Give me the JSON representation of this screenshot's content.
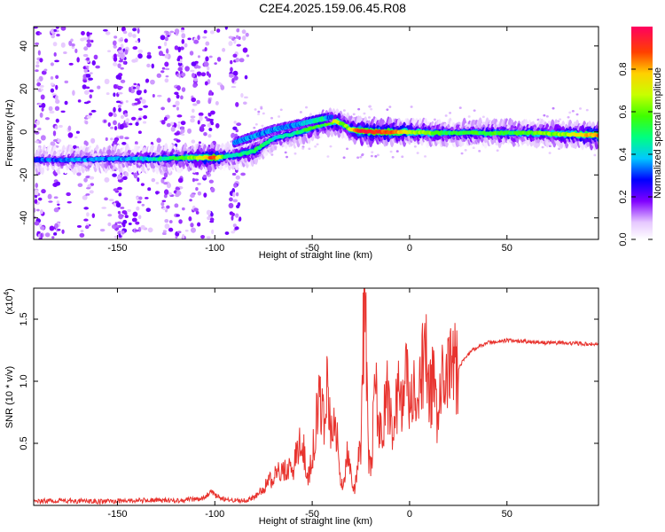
{
  "title": "C2E4.2025.159.06.45.R08",
  "chart_data": [
    {
      "type": "heatmap",
      "xlabel": "Height of straight line (km)",
      "ylabel": "Frequency (Hz)",
      "xlim": [
        -193,
        97
      ],
      "ylim": [
        -50,
        49
      ],
      "xticks": [
        -150,
        -100,
        -50,
        0,
        50
      ],
      "xtick_labels": [
        "-150",
        "-100",
        "-50",
        "0",
        "50"
      ],
      "yticks": [
        -40,
        -20,
        0,
        20,
        40
      ],
      "ytick_labels": [
        "-40",
        "-20",
        "0",
        "20",
        "40"
      ],
      "colorbar": {
        "label": "Normalized spectral amplitude",
        "range": [
          0,
          1
        ],
        "ticks": [
          0.0,
          0.2,
          0.4,
          0.6,
          0.8
        ],
        "tick_labels": [
          "0.0",
          "0.2",
          "0.4",
          "0.6",
          "0.8"
        ]
      },
      "ridge": {
        "x": [
          -193,
          -170,
          -150,
          -130,
          -115,
          -100,
          -95,
          -90,
          -80,
          -70,
          -60,
          -50,
          -42,
          -38,
          -34,
          -30,
          -25,
          -20,
          -10,
          0,
          10,
          20,
          40,
          60,
          80,
          97
        ],
        "y": [
          -13,
          -13,
          -12.5,
          -12.5,
          -12,
          -12,
          -11.5,
          -11,
          -9,
          -3,
          -1,
          2,
          4,
          5,
          3.5,
          1,
          0.5,
          0,
          0,
          0,
          -0.5,
          -0.5,
          -0.5,
          -0.5,
          -1,
          -1.5
        ],
        "amp": [
          0.3,
          0.35,
          0.35,
          0.45,
          0.55,
          0.9,
          0.5,
          0.45,
          0.55,
          0.4,
          0.45,
          0.55,
          0.55,
          0.75,
          0.6,
          0.65,
          0.95,
          0.9,
          0.9,
          0.7,
          0.6,
          0.5,
          0.55,
          0.55,
          0.65,
          0.85
        ]
      },
      "secondary_ridge": {
        "x": [
          -90,
          -80,
          -70,
          -60,
          -50,
          -45,
          -40
        ],
        "y": [
          -5,
          -2,
          1,
          3,
          5,
          6,
          7
        ],
        "amp": [
          0.35,
          0.35,
          0.35,
          0.35,
          0.4,
          0.5,
          0.3
        ]
      }
    },
    {
      "type": "line",
      "xlabel": "Height of straight line (km)",
      "ylabel": "SNR (10 * v/v)",
      "y_multiplier": "(x10",
      "y_multiplier_exp": "4",
      "y_multiplier_close": ")",
      "xlim": [
        -193,
        97
      ],
      "ylim": [
        0,
        1.75
      ],
      "xticks": [
        -150,
        -100,
        -50,
        0,
        50
      ],
      "xtick_labels": [
        "-150",
        "-100",
        "-50",
        "0",
        "50"
      ],
      "yticks": [
        0.5,
        1.0,
        1.5
      ],
      "ytick_labels": [
        "0.5",
        "1.0",
        "1.5"
      ],
      "series": [
        {
          "color": "#e8332e",
          "x": [
            -193,
            -180,
            -160,
            -140,
            -120,
            -110,
            -105,
            -102,
            -100,
            -95,
            -90,
            -85,
            -80,
            -76,
            -72,
            -68,
            -64,
            -60,
            -57,
            -54,
            -52,
            -50,
            -48,
            -46,
            -44,
            -42,
            -40,
            -38,
            -36,
            -34,
            -32,
            -30,
            -28,
            -26,
            -25,
            -24,
            -23,
            -22,
            -21,
            -20,
            -19,
            -18,
            -16,
            -14,
            -12,
            -10,
            -8,
            -6,
            -4,
            -2,
            0,
            2,
            4,
            6,
            8,
            10,
            12,
            14,
            16,
            18,
            20,
            22,
            25,
            28,
            32,
            36,
            40,
            50,
            60,
            70,
            80,
            90,
            97
          ],
          "y": [
            0.03,
            0.04,
            0.03,
            0.04,
            0.04,
            0.05,
            0.06,
            0.12,
            0.08,
            0.05,
            0.04,
            0.04,
            0.06,
            0.12,
            0.2,
            0.25,
            0.3,
            0.28,
            0.48,
            0.42,
            0.22,
            0.4,
            0.65,
            0.85,
            0.7,
            1.02,
            0.55,
            0.75,
            0.25,
            0.12,
            0.45,
            0.22,
            0.12,
            0.5,
            0.3,
            1.2,
            1.75,
            1.1,
            0.35,
            0.3,
            0.5,
            1.05,
            0.7,
            0.55,
            0.9,
            0.78,
            0.6,
            0.95,
            0.75,
            1.07,
            0.8,
            0.9,
            0.7,
            1.0,
            1.3,
            0.85,
            1.0,
            0.7,
            1.0,
            0.9,
            1.05,
            1.15,
            1.1,
            1.18,
            1.25,
            1.28,
            1.31,
            1.33,
            1.32,
            1.31,
            1.31,
            1.3,
            1.3
          ]
        }
      ]
    }
  ]
}
